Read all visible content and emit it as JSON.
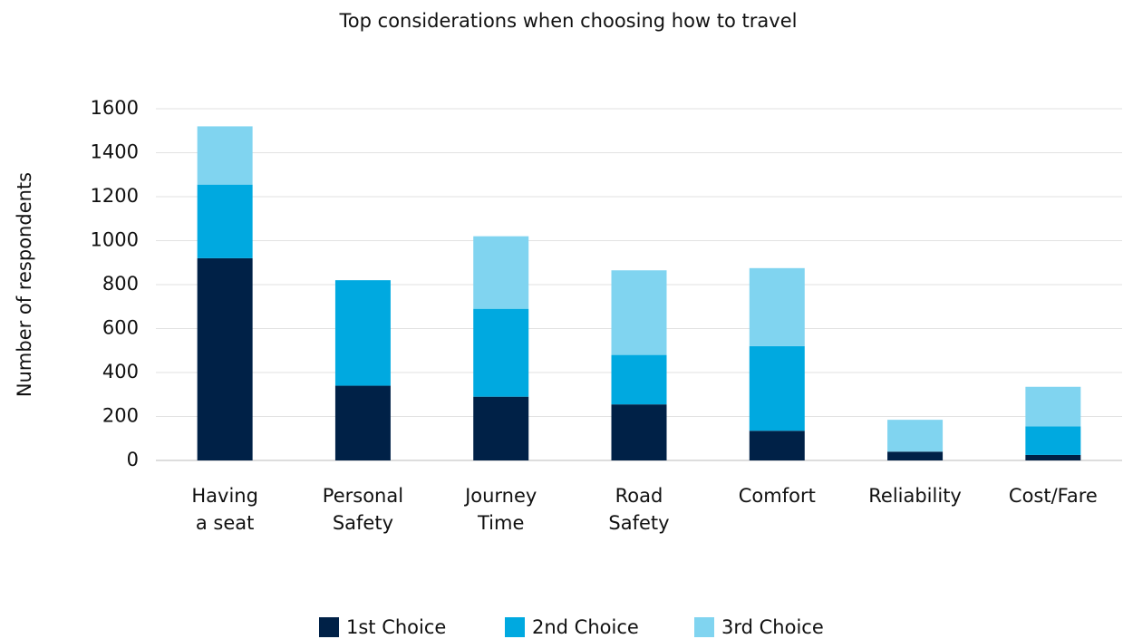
{
  "chart_data": {
    "type": "stacked_bar",
    "title": "Top considerations when choosing how to travel",
    "y_label": "Number of respondents",
    "categories": [
      "Having\na seat",
      "Personal\nSafety",
      "Journey\nTime",
      "Road\nSafety",
      "Comfort",
      "Reliability",
      "Cost/Fare"
    ],
    "series": [
      {
        "name": "1st Choice",
        "color": "#002147",
        "values": [
          920,
          340,
          290,
          255,
          135,
          40,
          25
        ]
      },
      {
        "name": "2nd Choice",
        "color": "#00a9e0",
        "values": [
          335,
          480,
          400,
          225,
          385,
          0,
          130
        ]
      },
      {
        "name": "3rd Choice",
        "color": "#80d4f0",
        "values": [
          265,
          0,
          330,
          385,
          355,
          145,
          180
        ]
      }
    ],
    "ylim": [
      0,
      1600
    ],
    "yticks": [
      0,
      200,
      400,
      600,
      800,
      1000,
      1200,
      1400,
      1600
    ],
    "grid": true,
    "legend": "bottom"
  }
}
